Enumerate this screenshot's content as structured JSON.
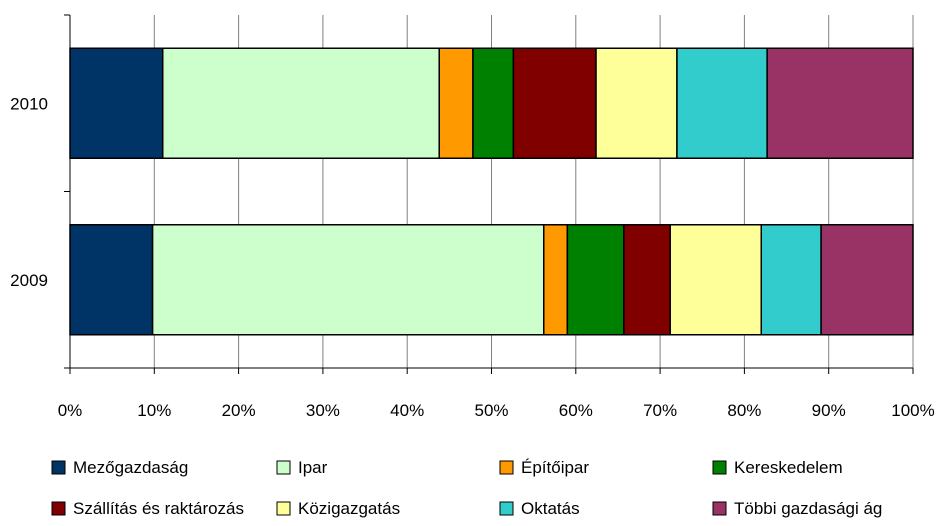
{
  "chart_data": {
    "type": "bar",
    "orientation": "horizontal",
    "stacking": "percent",
    "categories": [
      "2010",
      "2009"
    ],
    "series": [
      {
        "name": "Mezőgazdaság",
        "color": "#003366",
        "values": [
          11.0,
          9.8
        ]
      },
      {
        "name": "Ipar",
        "color": "#CCFFCC",
        "values": [
          32.8,
          46.4
        ]
      },
      {
        "name": "Építőipar",
        "color": "#FF9900",
        "values": [
          4.0,
          2.8
        ]
      },
      {
        "name": "Kereskedelem",
        "color": "#008000",
        "values": [
          4.8,
          6.7
        ]
      },
      {
        "name": "Szállítás és raktározás",
        "color": "#800000",
        "values": [
          9.8,
          5.5
        ]
      },
      {
        "name": "Közigazgatás",
        "color": "#FFFF99",
        "values": [
          9.6,
          10.8
        ]
      },
      {
        "name": "Oktatás",
        "color": "#33CCCC",
        "values": [
          10.7,
          7.1
        ]
      },
      {
        "name": "Többi gazdasági ág",
        "color": "#993366",
        "values": [
          17.3,
          10.9
        ]
      }
    ],
    "x_ticks": [
      "0%",
      "10%",
      "20%",
      "30%",
      "40%",
      "50%",
      "60%",
      "70%",
      "80%",
      "90%",
      "100%"
    ],
    "xlim": [
      0,
      100
    ],
    "grid": true,
    "legend_position": "bottom"
  }
}
